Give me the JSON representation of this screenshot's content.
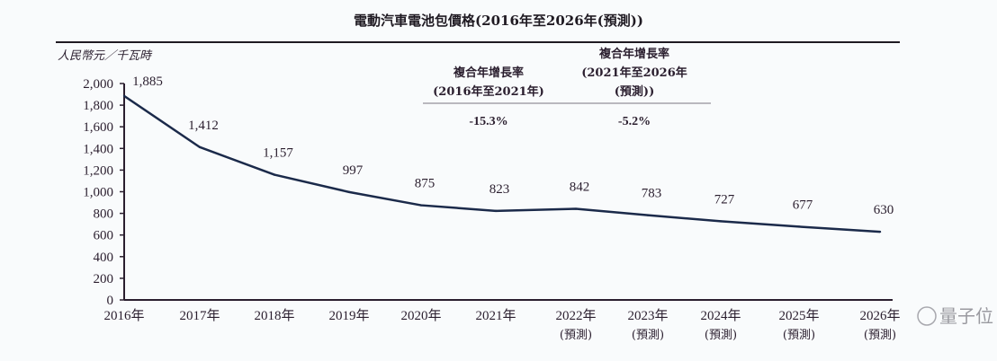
{
  "chart_data": {
    "type": "line",
    "title": "電動汽車電池包價格(2016年至2026年(預測))",
    "ylabel": "人民幣元／千瓦時",
    "xlabel": "",
    "ylim": [
      0,
      2000
    ],
    "yticks": [
      0,
      200,
      400,
      600,
      800,
      1000,
      1200,
      1400,
      1600,
      1800,
      2000
    ],
    "ytick_labels": [
      "0",
      "200",
      "400",
      "600",
      "800",
      "1,000",
      "1,200",
      "1,400",
      "1,600",
      "1,800",
      "2,000"
    ],
    "grid": false,
    "categories": [
      "2016年",
      "2017年",
      "2018年",
      "2019年",
      "2020年",
      "2021年",
      "2022年",
      "2023年",
      "2024年",
      "2025年",
      "2026年"
    ],
    "forecast_note": "(預測)",
    "forecast_from_index": 6,
    "series": [
      {
        "name": "電動汽車電池包價格",
        "values": [
          1885,
          1412,
          1157,
          997,
          875,
          823,
          842,
          783,
          727,
          677,
          630
        ],
        "labels": [
          "1,885",
          "1,412",
          "1,157",
          "997",
          "875",
          "823",
          "842",
          "783",
          "727",
          "677",
          "630"
        ],
        "color": "#1b2a4a"
      }
    ],
    "annotations": {
      "cagr": [
        {
          "header_lines": [
            "複合年增長率",
            "(2016年至2021年)"
          ],
          "value": "-15.3%"
        },
        {
          "header_lines": [
            "複合年增長率",
            "(2021年至2026年",
            "(預測))"
          ],
          "value": "-5.2%"
        }
      ]
    },
    "legend": "none"
  },
  "watermark": {
    "text": "量子位"
  }
}
